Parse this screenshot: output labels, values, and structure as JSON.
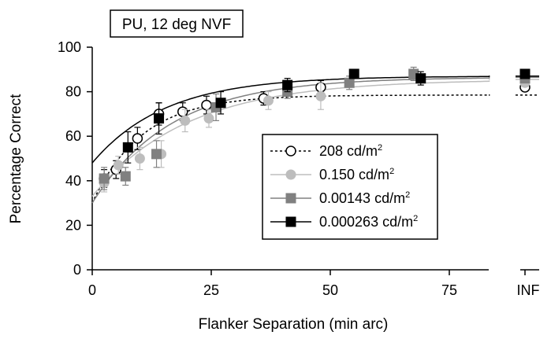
{
  "chart_data": {
    "type": "scatter",
    "title": "PU, 12 deg NVF",
    "xlabel": "Flanker Separation (min arc)",
    "ylabel": "Percentage Correct",
    "xlim": [
      0,
      90
    ],
    "ylim": [
      0,
      100
    ],
    "x_ticks": [
      "0",
      "25",
      "50",
      "75"
    ],
    "x_tick_values": [
      0,
      25,
      50,
      75
    ],
    "inf_tick_label": "INF",
    "y_ticks": [
      "0",
      "20",
      "40",
      "60",
      "80",
      "100"
    ],
    "y_tick_values": [
      0,
      20,
      40,
      60,
      80,
      100
    ],
    "legend_position": "center-right",
    "series": [
      {
        "name": "208 cd/m²",
        "legend_label": "208 cd/m",
        "legend_sup": "2",
        "marker": "circle-open",
        "color": "#000000",
        "line_style": "dotted",
        "x": [
          2.5,
          5,
          9.5,
          14,
          19,
          24,
          36,
          48
        ],
        "y": [
          41,
          45,
          59,
          70,
          71,
          74,
          77,
          82
        ],
        "err": [
          4,
          4,
          5,
          5,
          4,
          4,
          3,
          3
        ],
        "inf_y": 82,
        "fit": {
          "a": 30,
          "b": 78.5,
          "c": 0.095
        }
      },
      {
        "name": "0.150 cd/m²",
        "legend_label": "0.150 cd/m",
        "legend_sup": "2",
        "marker": "circle-filled",
        "color": "#bdbdbd",
        "line_style": "solid",
        "x": [
          2.5,
          5.5,
          10,
          14.5,
          19.5,
          24.5,
          37,
          48
        ],
        "y": [
          39,
          47,
          50,
          52,
          67,
          68,
          76,
          78
        ],
        "err": [
          4,
          4,
          5,
          6,
          5,
          4,
          4,
          6
        ],
        "inf_y": 84,
        "fit": {
          "a": 33,
          "b": 85.5,
          "c": 0.05
        }
      },
      {
        "name": "0.00143 cd/m²",
        "legend_label": "0.00143 cd/m",
        "legend_sup": "2",
        "marker": "square-filled",
        "color": "#808080",
        "line_style": "solid",
        "x": [
          2.5,
          7,
          13.5,
          26,
          41,
          54,
          67.5
        ],
        "y": [
          41,
          42,
          52,
          73,
          80,
          84,
          88
        ],
        "err": [
          5,
          4,
          6,
          6,
          3,
          3,
          3
        ],
        "inf_y": 86,
        "fit": {
          "a": 30,
          "b": 86.5,
          "c": 0.06
        }
      },
      {
        "name": "0.000263 cd/m²",
        "legend_label": "0.000263 cd/m",
        "legend_sup": "2",
        "marker": "square-filled",
        "color": "#000000",
        "line_style": "solid",
        "x": [
          7.5,
          14,
          27,
          41,
          55,
          69
        ],
        "y": [
          55,
          68,
          75,
          83,
          88,
          86
        ],
        "err": [
          7,
          7,
          5,
          3,
          2,
          3
        ],
        "inf_y": 88,
        "fit": {
          "a": 48,
          "b": 87,
          "c": 0.065
        }
      }
    ]
  }
}
